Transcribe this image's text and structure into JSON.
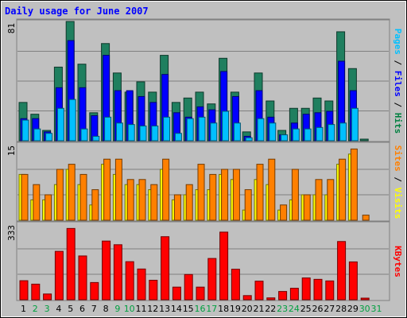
{
  "chart_data": {
    "type": "bar",
    "title": "Daily usage for June 2007",
    "categories": [
      "1",
      "2",
      "3",
      "4",
      "5",
      "6",
      "7",
      "8",
      "9",
      "10",
      "11",
      "12",
      "13",
      "14",
      "15",
      "16",
      "17",
      "18",
      "19",
      "20",
      "21",
      "22",
      "23",
      "24",
      "25",
      "26",
      "27",
      "28",
      "29",
      "30",
      "31"
    ],
    "weekend_days": [
      "2",
      "3",
      "9",
      "10",
      "16",
      "17",
      "23",
      "24",
      "30",
      "31"
    ],
    "panels": [
      {
        "id": "hits_files_pages",
        "scale_max_label": "81",
        "ylim": [
          0,
          81
        ],
        "right_labels": [
          {
            "text": "Pages",
            "color": "#00c0ff"
          },
          {
            "text": " / ",
            "color": "#000000"
          },
          {
            "text": "Files",
            "color": "#0000ff"
          },
          {
            "text": " / ",
            "color": "#000000"
          },
          {
            "text": "Hits",
            "color": "#008040"
          }
        ],
        "series": [
          {
            "name": "Hits",
            "color": "#1f7f5f",
            "values": [
              26,
              18,
              7,
              50,
              81,
              52,
              19,
              66,
              46,
              33,
              40,
              33,
              58,
              26,
              29,
              33,
              25,
              56,
              33,
              6,
              46,
              27,
              7,
              22,
              22,
              29,
              27,
              74,
              49,
              1,
              0
            ]
          },
          {
            "name": "Files",
            "color": "#0000ff",
            "values": [
              15,
              15,
              6,
              36,
              68,
              36,
              17,
              58,
              34,
              34,
              30,
              26,
              45,
              19,
              16,
              23,
              21,
              47,
              30,
              3,
              34,
              16,
              4,
              12,
              18,
              19,
              20,
              54,
              34,
              0,
              0
            ]
          },
          {
            "name": "Pages",
            "color": "#00c0ff",
            "values": [
              14,
              8,
              5,
              22,
              28,
              8,
              3,
              16,
              12,
              11,
              10,
              10,
              16,
              5,
              15,
              16,
              12,
              20,
              12,
              2,
              15,
              12,
              4,
              8,
              8,
              9,
              11,
              12,
              22,
              0,
              0
            ]
          }
        ]
      },
      {
        "id": "visits_sites",
        "scale_max_label": "15",
        "ylim": [
          0,
          15
        ],
        "right_labels": [
          {
            "text": "Sites",
            "color": "#ff8000"
          },
          {
            "text": " / ",
            "color": "#000000"
          },
          {
            "text": "Visits",
            "color": "#ffff00"
          }
        ],
        "series": [
          {
            "name": "Visits",
            "color": "#ffff00",
            "values": [
              9,
              4,
              4,
              7,
              10,
              7,
              3,
              11,
              9,
              7,
              7,
              6,
              10,
              4,
              5,
              6,
              6,
              9,
              8,
              2,
              8,
              7,
              2,
              4,
              5,
              5,
              5,
              11,
              13,
              0,
              0
            ]
          },
          {
            "name": "Sites",
            "color": "#ff8000",
            "values": [
              9,
              7,
              5,
              10,
              11,
              9,
              6,
              12,
              12,
              8,
              8,
              7,
              12,
              5,
              7,
              11,
              9,
              10,
              10,
              6,
              11,
              12,
              3,
              10,
              5,
              8,
              8,
              12,
              14,
              1,
              0
            ]
          }
        ]
      },
      {
        "id": "kbytes",
        "scale_max_label": "333",
        "ylim": [
          0,
          333
        ],
        "right_labels": [
          {
            "text": "KBytes",
            "color": "#ff0000"
          }
        ],
        "series": [
          {
            "name": "KBytes",
            "color": "#ff0000",
            "values": [
              83,
              68,
              25,
              211,
              311,
              191,
              75,
              256,
              240,
              166,
              134,
              85,
              275,
              55,
              110,
              55,
              180,
              295,
              133,
              18,
              81,
              8,
              36,
              50,
              95,
              89,
              82,
              254,
              165,
              5,
              0
            ]
          }
        ]
      }
    ]
  }
}
